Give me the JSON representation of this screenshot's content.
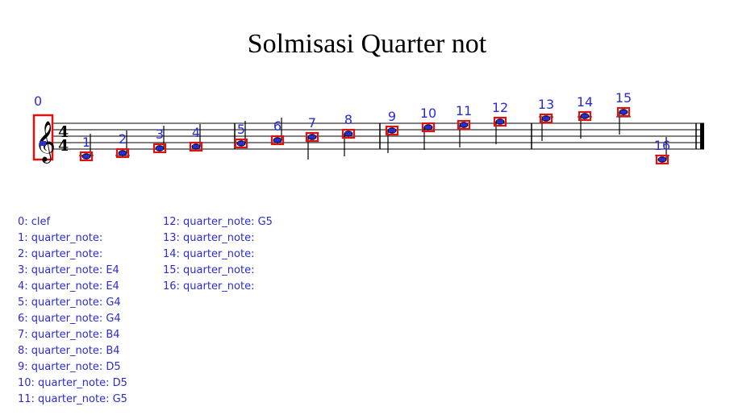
{
  "title": "Solmisasi Quarter not",
  "annotation_color": "#2b2bd6",
  "box_color": "#e01010",
  "time_signature": {
    "top": "4",
    "bottom": "4"
  },
  "symbols": [
    {
      "id": "0",
      "type": "clef"
    },
    {
      "id": "1",
      "type": "quarter_note",
      "pitch": ""
    },
    {
      "id": "2",
      "type": "quarter_note",
      "pitch": ""
    },
    {
      "id": "3",
      "type": "quarter_note",
      "pitch": "E4"
    },
    {
      "id": "4",
      "type": "quarter_note",
      "pitch": "E4"
    },
    {
      "id": "5",
      "type": "quarter_note",
      "pitch": "G4"
    },
    {
      "id": "6",
      "type": "quarter_note",
      "pitch": "G4"
    },
    {
      "id": "7",
      "type": "quarter_note",
      "pitch": "B4"
    },
    {
      "id": "8",
      "type": "quarter_note",
      "pitch": "B4"
    },
    {
      "id": "9",
      "type": "quarter_note",
      "pitch": "D5"
    },
    {
      "id": "10",
      "type": "quarter_note",
      "pitch": "D5"
    },
    {
      "id": "11",
      "type": "quarter_note",
      "pitch": "G5"
    },
    {
      "id": "12",
      "type": "quarter_note",
      "pitch": "G5"
    },
    {
      "id": "13",
      "type": "quarter_note",
      "pitch": ""
    },
    {
      "id": "14",
      "type": "quarter_note",
      "pitch": ""
    },
    {
      "id": "15",
      "type": "quarter_note",
      "pitch": ""
    },
    {
      "id": "16",
      "type": "quarter_note",
      "pitch": ""
    }
  ],
  "legend": [
    "0: clef",
    "1: quarter_note: ",
    "2: quarter_note: ",
    "3: quarter_note: E4",
    "4: quarter_note: E4",
    "5: quarter_note: G4",
    "6: quarter_note: G4",
    "7: quarter_note: B4",
    "8: quarter_note: B4",
    "9: quarter_note: D5",
    "10: quarter_note: D5",
    "11: quarter_note: G5",
    "12: quarter_note: G5",
    "13: quarter_note: ",
    "14: quarter_note: ",
    "15: quarter_note: ",
    "16: quarter_note: "
  ]
}
